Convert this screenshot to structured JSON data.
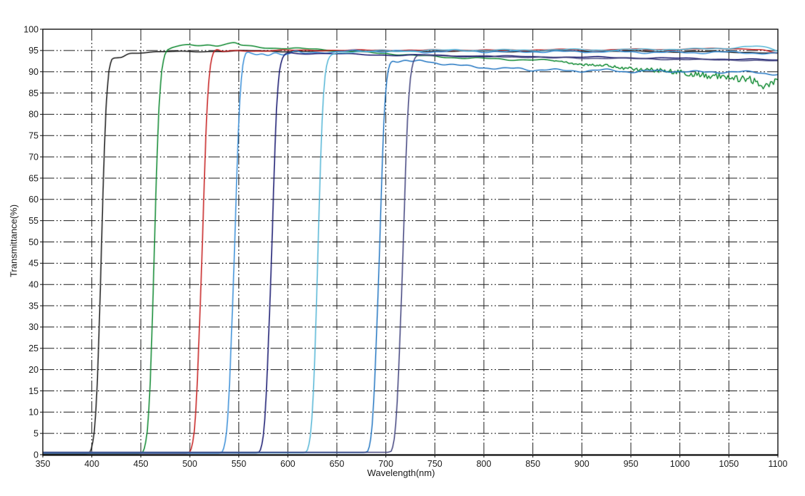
{
  "chart_data": {
    "type": "line",
    "title": "",
    "xlabel": "Wavelength(nm)",
    "ylabel": "Transmittance(%)",
    "xlim": [
      350,
      1100
    ],
    "ylim": [
      0,
      100
    ],
    "xticks": [
      350,
      400,
      450,
      500,
      550,
      600,
      650,
      700,
      750,
      800,
      850,
      900,
      950,
      1000,
      1050,
      1100
    ],
    "yticks": [
      0,
      5,
      10,
      15,
      20,
      25,
      30,
      35,
      40,
      45,
      50,
      55,
      60,
      65,
      70,
      75,
      80,
      85,
      90,
      95,
      100
    ],
    "grid": {
      "visible": true,
      "style": "dash-dot",
      "color": "#1c1c1c"
    },
    "legend": {
      "visible": false
    },
    "description": "Transmittance spectra of eight long-pass optical filters with cut-on wavelengths near 410, 465, 513, 546, 584, 631, 694 and 718 nm; all plateau near 93-96% transmittance.",
    "series": [
      {
        "name": "long-pass ~410 nm",
        "color": "#1c1c1c",
        "cuton_nm": 410,
        "wiggle": {
          "amp": 0.1,
          "period": 78,
          "phase": 0.5
        },
        "points": [
          [
            350,
            0.2
          ],
          [
            396,
            0.2
          ],
          [
            400,
            1
          ],
          [
            404,
            8
          ],
          [
            407,
            25
          ],
          [
            410,
            50
          ],
          [
            413,
            75
          ],
          [
            416,
            88
          ],
          [
            419,
            92.5
          ],
          [
            421,
            93.2
          ],
          [
            426,
            93.3
          ],
          [
            431,
            93.4
          ],
          [
            435,
            94.0
          ],
          [
            439,
            94.4
          ],
          [
            448,
            94.5
          ],
          [
            460,
            94.6
          ],
          [
            480,
            94.7
          ],
          [
            520,
            94.8
          ],
          [
            560,
            94.9
          ],
          [
            600,
            94.8
          ],
          [
            640,
            94.8
          ],
          [
            680,
            94.9
          ],
          [
            720,
            94.8
          ],
          [
            760,
            94.9
          ],
          [
            800,
            94.8
          ],
          [
            840,
            94.8
          ],
          [
            880,
            94.9
          ],
          [
            920,
            94.8
          ],
          [
            960,
            94.8
          ],
          [
            1000,
            94.7
          ],
          [
            1040,
            94.7
          ],
          [
            1070,
            94.6
          ],
          [
            1100,
            94.3
          ]
        ]
      },
      {
        "name": "long-pass ~465 nm",
        "color": "#108a32",
        "cuton_nm": 465,
        "wiggle": {
          "amp": 0.15,
          "period": 62,
          "phase": 2.1
        },
        "jitter": {
          "from": 870,
          "base": 0.1,
          "slope": 0.004
        },
        "points": [
          [
            350,
            0.25
          ],
          [
            450,
            0.25
          ],
          [
            454,
            1
          ],
          [
            458,
            8
          ],
          [
            461,
            25
          ],
          [
            464,
            50
          ],
          [
            467,
            75
          ],
          [
            470,
            88
          ],
          [
            473,
            93
          ],
          [
            476,
            95
          ],
          [
            482,
            95.7
          ],
          [
            490,
            96.1
          ],
          [
            500,
            96.3
          ],
          [
            510,
            96.2
          ],
          [
            520,
            96.4
          ],
          [
            528,
            96.2
          ],
          [
            538,
            96.5
          ],
          [
            546,
            96.8
          ],
          [
            552,
            96.2
          ],
          [
            560,
            96.0
          ],
          [
            572,
            95.8
          ],
          [
            584,
            95.6
          ],
          [
            598,
            95.5
          ],
          [
            612,
            95.4
          ],
          [
            626,
            95.3
          ],
          [
            640,
            95.2
          ],
          [
            655,
            94.9
          ],
          [
            670,
            94.7
          ],
          [
            685,
            94.5
          ],
          [
            700,
            94.3
          ],
          [
            715,
            94.1
          ],
          [
            730,
            93.8
          ],
          [
            750,
            93.6
          ],
          [
            775,
            93.3
          ],
          [
            800,
            93.1
          ],
          [
            825,
            92.9
          ],
          [
            850,
            92.8
          ],
          [
            875,
            92.5
          ],
          [
            900,
            91.8
          ],
          [
            925,
            91.3
          ],
          [
            950,
            90.8
          ],
          [
            975,
            90.3
          ],
          [
            1000,
            89.8
          ],
          [
            1025,
            89.2
          ],
          [
            1050,
            88.7
          ],
          [
            1065,
            88.4
          ],
          [
            1078,
            88.1
          ],
          [
            1088,
            86.5
          ],
          [
            1094,
            87.9
          ],
          [
            1100,
            87.7
          ]
        ]
      },
      {
        "name": "long-pass ~513 nm",
        "color": "#c61f1f",
        "cuton_nm": 513,
        "wiggle": {
          "amp": 0.12,
          "period": 70,
          "phase": 4.0
        },
        "points": [
          [
            350,
            0.3
          ],
          [
            498,
            0.3
          ],
          [
            502,
            1
          ],
          [
            506,
            8
          ],
          [
            509,
            25
          ],
          [
            513,
            50
          ],
          [
            516,
            75
          ],
          [
            519,
            88
          ],
          [
            522,
            93.5
          ],
          [
            525,
            95.0
          ],
          [
            528,
            95.3
          ],
          [
            533,
            94.7
          ],
          [
            540,
            94.8
          ],
          [
            550,
            95.0
          ],
          [
            565,
            94.9
          ],
          [
            585,
            95.0
          ],
          [
            610,
            95.0
          ],
          [
            640,
            95.1
          ],
          [
            670,
            95.0
          ],
          [
            700,
            95.1
          ],
          [
            740,
            95.0
          ],
          [
            780,
            95.1
          ],
          [
            820,
            95.0
          ],
          [
            860,
            95.2
          ],
          [
            900,
            95.1
          ],
          [
            940,
            95.2
          ],
          [
            980,
            95.2
          ],
          [
            1020,
            95.3
          ],
          [
            1050,
            95.5
          ],
          [
            1070,
            95.4
          ],
          [
            1085,
            95.0
          ],
          [
            1095,
            94.5
          ],
          [
            1100,
            94.3
          ]
        ]
      },
      {
        "name": "long-pass ~546 nm",
        "color": "#3a8fd8",
        "cuton_nm": 546,
        "wiggle": {
          "amp": 0.2,
          "period": 55,
          "phase": 1.2
        },
        "points": [
          [
            350,
            0.35
          ],
          [
            531,
            0.35
          ],
          [
            535,
            1
          ],
          [
            539,
            8
          ],
          [
            542,
            25
          ],
          [
            546,
            50
          ],
          [
            549,
            75
          ],
          [
            552,
            88
          ],
          [
            555,
            93.5
          ],
          [
            558,
            94.8
          ],
          [
            563,
            94.3
          ],
          [
            568,
            93.9
          ],
          [
            574,
            94.4
          ],
          [
            580,
            94.0
          ],
          [
            587,
            94.6
          ],
          [
            594,
            94.0
          ],
          [
            601,
            94.1
          ],
          [
            608,
            94.7
          ],
          [
            616,
            94.3
          ],
          [
            624,
            94.5
          ],
          [
            634,
            94.7
          ],
          [
            646,
            94.6
          ],
          [
            660,
            94.8
          ],
          [
            680,
            94.9
          ],
          [
            710,
            94.8
          ],
          [
            740,
            94.7
          ],
          [
            770,
            94.9
          ],
          [
            800,
            94.8
          ],
          [
            830,
            94.6
          ],
          [
            860,
            94.8
          ],
          [
            890,
            94.7
          ],
          [
            920,
            94.8
          ],
          [
            950,
            94.6
          ],
          [
            980,
            94.6
          ],
          [
            1010,
            94.5
          ],
          [
            1040,
            94.6
          ],
          [
            1070,
            94.5
          ],
          [
            1100,
            94.2
          ]
        ]
      },
      {
        "name": "long-pass ~584 nm",
        "color": "#16176f",
        "cuton_nm": 584,
        "wiggle": {
          "amp": 0.12,
          "period": 85,
          "phase": 3.3
        },
        "points": [
          [
            350,
            0.4
          ],
          [
            569,
            0.4
          ],
          [
            573,
            1
          ],
          [
            577,
            8
          ],
          [
            580,
            25
          ],
          [
            584,
            50
          ],
          [
            587,
            75
          ],
          [
            590,
            88
          ],
          [
            593,
            92.5
          ],
          [
            597,
            94.3
          ],
          [
            602,
            94.5
          ],
          [
            610,
            94.3
          ],
          [
            625,
            94.3
          ],
          [
            645,
            94.2
          ],
          [
            665,
            94.1
          ],
          [
            690,
            94.0
          ],
          [
            715,
            93.9
          ],
          [
            740,
            93.9
          ],
          [
            770,
            93.7
          ],
          [
            800,
            93.6
          ],
          [
            830,
            93.6
          ],
          [
            860,
            93.5
          ],
          [
            890,
            93.4
          ],
          [
            920,
            93.4
          ],
          [
            950,
            93.3
          ],
          [
            980,
            93.2
          ],
          [
            1010,
            93.1
          ],
          [
            1040,
            93.0
          ],
          [
            1070,
            92.9
          ],
          [
            1100,
            92.7
          ]
        ]
      },
      {
        "name": "long-pass ~631 nm",
        "color": "#55b6d6",
        "cuton_nm": 631,
        "wiggle": {
          "amp": 0.15,
          "period": 66,
          "phase": 5.1
        },
        "points": [
          [
            350,
            0.45
          ],
          [
            617,
            0.45
          ],
          [
            621,
            1
          ],
          [
            625,
            8
          ],
          [
            628,
            25
          ],
          [
            631,
            50
          ],
          [
            634,
            75
          ],
          [
            637,
            88
          ],
          [
            640,
            92.5
          ],
          [
            644,
            94.0
          ],
          [
            650,
            94.4
          ],
          [
            660,
            94.6
          ],
          [
            675,
            94.7
          ],
          [
            695,
            94.9
          ],
          [
            720,
            94.9
          ],
          [
            750,
            95.0
          ],
          [
            780,
            95.1
          ],
          [
            810,
            95.0
          ],
          [
            840,
            95.1
          ],
          [
            870,
            95.1
          ],
          [
            900,
            95.2
          ],
          [
            930,
            95.1
          ],
          [
            960,
            95.2
          ],
          [
            990,
            95.3
          ],
          [
            1020,
            95.3
          ],
          [
            1045,
            95.5
          ],
          [
            1065,
            95.9
          ],
          [
            1078,
            96.0
          ],
          [
            1090,
            95.5
          ],
          [
            1100,
            94.9
          ]
        ]
      },
      {
        "name": "long-pass ~694 nm",
        "color": "#2678c2",
        "cuton_nm": 694,
        "wiggle": {
          "amp": 0.2,
          "period": 48,
          "phase": 0.2
        },
        "points": [
          [
            350,
            0.5
          ],
          [
            679,
            0.5
          ],
          [
            683,
            1
          ],
          [
            687,
            8
          ],
          [
            690,
            25
          ],
          [
            694,
            50
          ],
          [
            697,
            75
          ],
          [
            700,
            87
          ],
          [
            703,
            91.5
          ],
          [
            706,
            92.6
          ],
          [
            712,
            92.2
          ],
          [
            720,
            92.8
          ],
          [
            728,
            92.2
          ],
          [
            736,
            92.6
          ],
          [
            745,
            92.3
          ],
          [
            755,
            92.0
          ],
          [
            765,
            91.7
          ],
          [
            778,
            91.4
          ],
          [
            790,
            91.2
          ],
          [
            805,
            90.9
          ],
          [
            820,
            90.7
          ],
          [
            835,
            90.8
          ],
          [
            850,
            90.4
          ],
          [
            865,
            90.5
          ],
          [
            880,
            90.3
          ],
          [
            900,
            90.2
          ],
          [
            925,
            90.4
          ],
          [
            950,
            90.0
          ],
          [
            975,
            90.2
          ],
          [
            1000,
            90.1
          ],
          [
            1025,
            89.9
          ],
          [
            1050,
            90.0
          ],
          [
            1075,
            89.9
          ],
          [
            1100,
            89.4
          ]
        ]
      },
      {
        "name": "long-pass ~718 nm",
        "color": "#43457f",
        "cuton_nm": 718,
        "wiggle": {
          "amp": 0.1,
          "period": 74,
          "phase": 2.7
        },
        "points": [
          [
            350,
            0.55
          ],
          [
            703,
            0.55
          ],
          [
            707,
            1
          ],
          [
            711,
            8
          ],
          [
            714,
            25
          ],
          [
            718,
            50
          ],
          [
            721,
            75
          ],
          [
            724,
            87
          ],
          [
            727,
            92
          ],
          [
            731,
            93.8
          ],
          [
            738,
            94.0
          ],
          [
            748,
            93.8
          ],
          [
            760,
            93.9
          ],
          [
            775,
            93.7
          ],
          [
            790,
            93.7
          ],
          [
            805,
            93.6
          ],
          [
            820,
            93.5
          ],
          [
            840,
            93.5
          ],
          [
            860,
            93.4
          ],
          [
            880,
            93.3
          ],
          [
            900,
            93.2
          ],
          [
            925,
            93.2
          ],
          [
            950,
            93.1
          ],
          [
            975,
            93.0
          ],
          [
            1000,
            92.9
          ],
          [
            1025,
            92.8
          ],
          [
            1050,
            92.8
          ],
          [
            1075,
            92.7
          ],
          [
            1100,
            92.5
          ]
        ]
      }
    ]
  }
}
